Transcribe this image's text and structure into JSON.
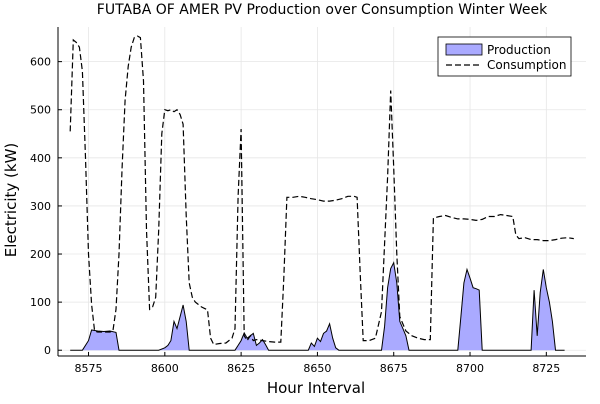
{
  "chart_data": {
    "type": "area",
    "title": "FUTABA OF AMER PV Production over Consumption Winter Week",
    "xlabel": "Hour Interval",
    "ylabel": "Electricity (kW)",
    "xlim": [
      8565,
      8738
    ],
    "ylim": [
      -12,
      672
    ],
    "xticks": [
      8575,
      8600,
      8625,
      8650,
      8675,
      8700,
      8725
    ],
    "yticks": [
      0,
      100,
      200,
      300,
      400,
      500,
      600
    ],
    "grid": true,
    "legend": {
      "position": "top-right"
    },
    "series": [
      {
        "name": "Production",
        "style": "filled-area",
        "fill": "#aaaaff",
        "stroke": "#000000",
        "points": [
          [
            8569,
            0
          ],
          [
            8571,
            0
          ],
          [
            8573,
            0
          ],
          [
            8575,
            20
          ],
          [
            8576,
            42
          ],
          [
            8578,
            40
          ],
          [
            8580,
            39
          ],
          [
            8582,
            40
          ],
          [
            8584,
            37
          ],
          [
            8585,
            0
          ],
          [
            8596,
            0
          ],
          [
            8598,
            0
          ],
          [
            8600,
            5
          ],
          [
            8601,
            10
          ],
          [
            8602,
            20
          ],
          [
            8603,
            60
          ],
          [
            8604,
            45
          ],
          [
            8605,
            70
          ],
          [
            8606,
            94
          ],
          [
            8607,
            60
          ],
          [
            8608,
            0
          ],
          [
            8621,
            0
          ],
          [
            8623,
            0
          ],
          [
            8624,
            10
          ],
          [
            8625,
            20
          ],
          [
            8626,
            36
          ],
          [
            8627,
            25
          ],
          [
            8628,
            30
          ],
          [
            8629,
            35
          ],
          [
            8630,
            10
          ],
          [
            8631,
            15
          ],
          [
            8632,
            22
          ],
          [
            8633,
            12
          ],
          [
            8634,
            0
          ],
          [
            8645,
            0
          ],
          [
            8647,
            0
          ],
          [
            8648,
            15
          ],
          [
            8649,
            8
          ],
          [
            8650,
            25
          ],
          [
            8651,
            18
          ],
          [
            8652,
            35
          ],
          [
            8653,
            40
          ],
          [
            8654,
            55
          ],
          [
            8655,
            25
          ],
          [
            8656,
            5
          ],
          [
            8657,
            0
          ],
          [
            8669,
            0
          ],
          [
            8671,
            0
          ],
          [
            8672,
            50
          ],
          [
            8673,
            130
          ],
          [
            8674,
            170
          ],
          [
            8675,
            182
          ],
          [
            8676,
            140
          ],
          [
            8677,
            60
          ],
          [
            8678,
            45
          ],
          [
            8679,
            30
          ],
          [
            8680,
            0
          ],
          [
            8694,
            0
          ],
          [
            8696,
            0
          ],
          [
            8697,
            70
          ],
          [
            8698,
            140
          ],
          [
            8699,
            168
          ],
          [
            8700,
            150
          ],
          [
            8701,
            130
          ],
          [
            8702,
            128
          ],
          [
            8703,
            125
          ],
          [
            8704,
            0
          ],
          [
            8718,
            0
          ],
          [
            8720,
            0
          ],
          [
            8721,
            125
          ],
          [
            8722,
            30
          ],
          [
            8723,
            120
          ],
          [
            8724,
            168
          ],
          [
            8725,
            130
          ],
          [
            8726,
            100
          ],
          [
            8727,
            60
          ],
          [
            8728,
            0
          ],
          [
            8731,
            0
          ]
        ]
      },
      {
        "name": "Consumption",
        "style": "dashed-line",
        "stroke": "#000000",
        "points": [
          [
            8569,
            455
          ],
          [
            8570,
            645
          ],
          [
            8571,
            640
          ],
          [
            8572,
            630
          ],
          [
            8573,
            580
          ],
          [
            8574,
            400
          ],
          [
            8575,
            200
          ],
          [
            8576,
            95
          ],
          [
            8577,
            40
          ],
          [
            8578,
            38
          ],
          [
            8580,
            38
          ],
          [
            8582,
            38
          ],
          [
            8583,
            40
          ],
          [
            8584,
            85
          ],
          [
            8585,
            200
          ],
          [
            8586,
            380
          ],
          [
            8587,
            520
          ],
          [
            8588,
            590
          ],
          [
            8589,
            630
          ],
          [
            8590,
            650
          ],
          [
            8591,
            653
          ],
          [
            8592,
            650
          ],
          [
            8593,
            560
          ],
          [
            8594,
            250
          ],
          [
            8595,
            85
          ],
          [
            8596,
            90
          ],
          [
            8597,
            110
          ],
          [
            8598,
            250
          ],
          [
            8599,
            450
          ],
          [
            8600,
            500
          ],
          [
            8601,
            498
          ],
          [
            8602,
            500
          ],
          [
            8603,
            496
          ],
          [
            8604,
            500
          ],
          [
            8605,
            490
          ],
          [
            8606,
            470
          ],
          [
            8607,
            280
          ],
          [
            8608,
            140
          ],
          [
            8609,
            110
          ],
          [
            8610,
            100
          ],
          [
            8611,
            95
          ],
          [
            8612,
            90
          ],
          [
            8613,
            87
          ],
          [
            8614,
            84
          ],
          [
            8615,
            25
          ],
          [
            8616,
            12
          ],
          [
            8618,
            14
          ],
          [
            8620,
            15
          ],
          [
            8621,
            20
          ],
          [
            8622,
            25
          ],
          [
            8623,
            45
          ],
          [
            8624,
            320
          ],
          [
            8625,
            460
          ],
          [
            8626,
            30
          ],
          [
            8627,
            20
          ],
          [
            8628,
            30
          ],
          [
            8629,
            20
          ],
          [
            8630,
            22
          ],
          [
            8632,
            20
          ],
          [
            8634,
            18
          ],
          [
            8636,
            17
          ],
          [
            8638,
            17
          ],
          [
            8639,
            150
          ],
          [
            8640,
            318
          ],
          [
            8642,
            318
          ],
          [
            8644,
            320
          ],
          [
            8646,
            318
          ],
          [
            8648,
            315
          ],
          [
            8650,
            313
          ],
          [
            8652,
            310
          ],
          [
            8654,
            310
          ],
          [
            8656,
            312
          ],
          [
            8658,
            315
          ],
          [
            8660,
            320
          ],
          [
            8662,
            320
          ],
          [
            8663,
            318
          ],
          [
            8664,
            160
          ],
          [
            8665,
            20
          ],
          [
            8667,
            20
          ],
          [
            8669,
            25
          ],
          [
            8671,
            80
          ],
          [
            8673,
            360
          ],
          [
            8674,
            540
          ],
          [
            8675,
            380
          ],
          [
            8676,
            200
          ],
          [
            8677,
            70
          ],
          [
            8679,
            40
          ],
          [
            8681,
            30
          ],
          [
            8683,
            25
          ],
          [
            8685,
            22
          ],
          [
            8687,
            22
          ],
          [
            8688,
            275
          ],
          [
            8690,
            278
          ],
          [
            8692,
            280
          ],
          [
            8694,
            276
          ],
          [
            8696,
            273
          ],
          [
            8698,
            273
          ],
          [
            8700,
            272
          ],
          [
            8702,
            270
          ],
          [
            8704,
            272
          ],
          [
            8706,
            278
          ],
          [
            8708,
            278
          ],
          [
            8710,
            282
          ],
          [
            8712,
            280
          ],
          [
            8714,
            278
          ],
          [
            8715,
            240
          ],
          [
            8716,
            232
          ],
          [
            8718,
            234
          ],
          [
            8720,
            230
          ],
          [
            8722,
            230
          ],
          [
            8724,
            228
          ],
          [
            8726,
            228
          ],
          [
            8728,
            230
          ],
          [
            8730,
            233
          ],
          [
            8732,
            234
          ],
          [
            8734,
            232
          ]
        ]
      }
    ]
  }
}
